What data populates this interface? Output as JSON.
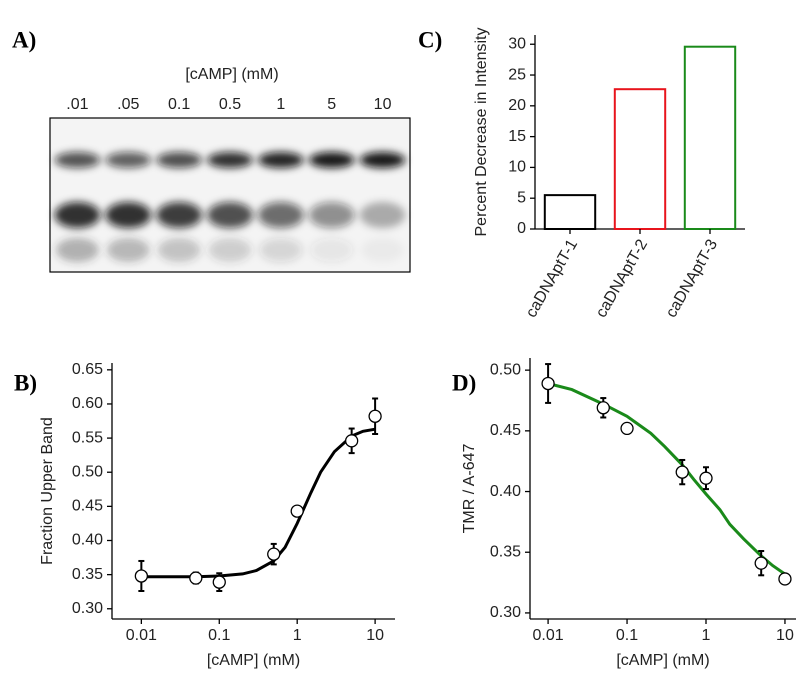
{
  "gel": {
    "label": "A)",
    "title": "[cAMP] (mM)",
    "lanes": [
      ".01",
      ".05",
      "0.1",
      "0.5",
      "1",
      "5",
      "10"
    ]
  },
  "chart_data": [
    {
      "type": "scatter",
      "label": "B)",
      "xlabel": "[cAMP] (mM)",
      "ylabel": "Fraction Upper Band",
      "xscale": "log",
      "xlim": [
        0.0042,
        18
      ],
      "ylim": [
        0.285,
        0.66
      ],
      "xticks": [
        0.01,
        0.1,
        1,
        10
      ],
      "yticks": [
        {
          "value": 0.3,
          "label": "0.30"
        },
        0.35,
        {
          "value": 0.4,
          "label": "0.40"
        },
        0.45,
        {
          "value": 0.5,
          "label": "0.50"
        },
        0.55,
        {
          "value": 0.6,
          "label": "0.60"
        },
        0.65
      ],
      "x": [
        0.01,
        0.05,
        0.1,
        0.5,
        1,
        5,
        10
      ],
      "series": [
        {
          "color": "#000000",
          "values": [
            0.348,
            0.345,
            0.339,
            0.38,
            0.443,
            0.546,
            0.582
          ],
          "errors": [
            0.022,
            0.008,
            0.013,
            0.015,
            0.007,
            0.018,
            0.026
          ]
        }
      ],
      "fit": {
        "color": "#000000",
        "x": [
          0.01,
          0.02,
          0.05,
          0.1,
          0.2,
          0.3,
          0.5,
          0.7,
          1,
          1.5,
          2,
          3,
          5,
          7,
          10
        ],
        "y": [
          0.347,
          0.347,
          0.347,
          0.348,
          0.351,
          0.356,
          0.37,
          0.39,
          0.425,
          0.47,
          0.5,
          0.53,
          0.553,
          0.56,
          0.563
        ]
      }
    },
    {
      "type": "bar",
      "label": "C)",
      "ylabel": "Percent Decrease in Intensity",
      "categories": [
        "caDNAptT-1",
        "caDNAptT-2",
        "caDNAptT-3"
      ],
      "values": [
        5.5,
        22.7,
        29.6
      ],
      "colors": [
        "#000000",
        "#e8141c",
        "#1a8a1a"
      ],
      "ylim": [
        0,
        31.5
      ],
      "yticks": [
        0,
        5,
        10,
        15,
        20,
        25,
        30
      ]
    },
    {
      "type": "scatter",
      "label": "D)",
      "xlabel": "[cAMP] (mM)",
      "ylabel": "TMR / A-647",
      "xscale": "log",
      "xlim": [
        0.0059,
        13.8
      ],
      "ylim": [
        0.295,
        0.51
      ],
      "xticks": [
        0.01,
        0.1,
        1,
        10
      ],
      "yticks": [
        {
          "value": 0.3,
          "label": "0.30"
        },
        0.35,
        {
          "value": 0.4,
          "label": "0.40"
        },
        0.45,
        {
          "value": 0.5,
          "label": "0.50"
        }
      ],
      "x": [
        0.01,
        0.05,
        0.1,
        0.5,
        1,
        5,
        10
      ],
      "series": [
        {
          "color": "#000000",
          "values": [
            0.489,
            0.469,
            0.452,
            0.416,
            0.411,
            0.341,
            0.328
          ],
          "errors": [
            0.016,
            0.008,
            0.003,
            0.01,
            0.009,
            0.01,
            0.003
          ]
        }
      ],
      "fit": {
        "color": "#1a8a1a",
        "x": [
          0.01,
          0.02,
          0.05,
          0.1,
          0.2,
          0.3,
          0.5,
          0.7,
          1,
          1.5,
          2,
          3,
          5,
          7,
          10
        ],
        "y": [
          0.489,
          0.484,
          0.472,
          0.462,
          0.448,
          0.437,
          0.422,
          0.41,
          0.398,
          0.385,
          0.373,
          0.361,
          0.347,
          0.339,
          0.332
        ]
      }
    }
  ]
}
